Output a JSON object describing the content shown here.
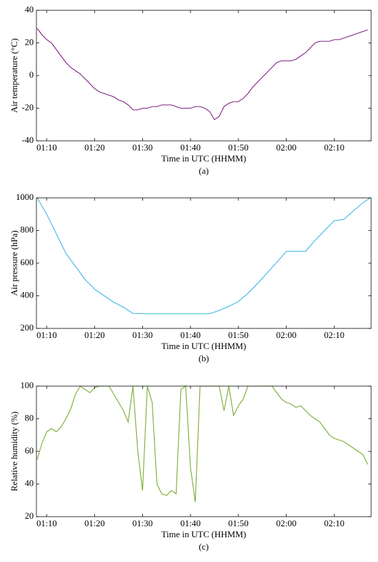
{
  "chart_data": [
    {
      "type": "line",
      "ylabel": "Air temperature (°C)",
      "xlabel": "Time in UTC (HHMM)",
      "caption": "(a)",
      "xlim": [
        67.85,
        137.7
      ],
      "ylim": [
        -40,
        40
      ],
      "yticks": [
        -40,
        -20,
        0,
        20,
        40
      ],
      "xticks": [
        {
          "value": 70,
          "label": "01:10"
        },
        {
          "value": 80,
          "label": "01:20"
        },
        {
          "value": 90,
          "label": "01:30"
        },
        {
          "value": 100,
          "label": "01:40"
        },
        {
          "value": 110,
          "label": "01:50"
        },
        {
          "value": 120,
          "label": "02:00"
        },
        {
          "value": 130,
          "label": "02:10"
        }
      ],
      "series": [
        {
          "color": "#7e1e80",
          "x": [
            68,
            69,
            70,
            71,
            72,
            73,
            74,
            75,
            76,
            77,
            78,
            79,
            80,
            81,
            82,
            83,
            84,
            85,
            86,
            87,
            88,
            89,
            90,
            91,
            92,
            93,
            94,
            95,
            96,
            97,
            98,
            99,
            100,
            101,
            102,
            103,
            104,
            105,
            106,
            107,
            108,
            109,
            110,
            111,
            112,
            113,
            114,
            115,
            116,
            117,
            118,
            119,
            120,
            121,
            122,
            123,
            124,
            125,
            126,
            127,
            128,
            129,
            130,
            131,
            132,
            133,
            134,
            135,
            136,
            137
          ],
          "values": [
            29,
            25,
            22,
            20,
            16,
            12,
            8,
            5,
            3,
            1,
            -2,
            -5,
            -8,
            -10,
            -11,
            -12,
            -13,
            -15,
            -16,
            -18,
            -21,
            -21,
            -20,
            -20,
            -19,
            -19,
            -18,
            -18,
            -18,
            -19,
            -20,
            -20,
            -20,
            -19,
            -19,
            -20,
            -22,
            -27,
            -25,
            -19,
            -17,
            -16,
            -16,
            -14,
            -11,
            -7,
            -4,
            -1,
            2,
            5,
            8,
            9,
            9,
            9,
            10,
            12,
            14,
            17,
            20,
            21,
            21,
            21,
            22,
            22,
            23,
            24,
            25,
            26,
            27,
            28
          ]
        }
      ]
    },
    {
      "type": "line",
      "ylabel": "Air pressure (hPa)",
      "xlabel": "Time in UTC (HHMM)",
      "caption": "(b)",
      "xlim": [
        67.85,
        137.7
      ],
      "ylim": [
        200,
        1000
      ],
      "yticks": [
        200,
        400,
        600,
        800,
        1000
      ],
      "xticks": [
        {
          "value": 70,
          "label": "01:10"
        },
        {
          "value": 80,
          "label": "01:20"
        },
        {
          "value": 90,
          "label": "01:30"
        },
        {
          "value": 100,
          "label": "01:40"
        },
        {
          "value": 110,
          "label": "01:50"
        },
        {
          "value": 120,
          "label": "02:00"
        },
        {
          "value": 130,
          "label": "02:10"
        }
      ],
      "series": [
        {
          "color": "#3db5e6",
          "x": [
            68,
            70,
            72,
            74,
            76,
            78,
            80,
            82,
            84,
            86,
            88,
            90,
            92,
            94,
            96,
            98,
            100,
            102,
            104,
            106,
            108,
            110,
            112,
            114,
            116,
            118,
            120,
            122,
            124,
            126,
            128,
            130,
            132,
            134,
            136,
            137.5
          ],
          "values": [
            1000,
            900,
            780,
            660,
            580,
            500,
            440,
            400,
            360,
            330,
            292,
            290,
            290,
            290,
            290,
            290,
            290,
            290,
            290,
            310,
            335,
            365,
            415,
            475,
            540,
            605,
            672,
            672,
            672,
            740,
            800,
            860,
            868,
            920,
            970,
            1000
          ]
        }
      ]
    },
    {
      "type": "line",
      "ylabel": "Relative humidity (%)",
      "xlabel": "Time in UTC (HHMM)",
      "caption": "(c)",
      "xlim": [
        67.85,
        137.7
      ],
      "ylim": [
        20,
        100
      ],
      "yticks": [
        20,
        40,
        60,
        80,
        100
      ],
      "xticks": [
        {
          "value": 70,
          "label": "01:10"
        },
        {
          "value": 80,
          "label": "01:20"
        },
        {
          "value": 90,
          "label": "01:30"
        },
        {
          "value": 100,
          "label": "01:40"
        },
        {
          "value": 110,
          "label": "01:50"
        },
        {
          "value": 120,
          "label": "02:00"
        },
        {
          "value": 130,
          "label": "02:10"
        }
      ],
      "series": [
        {
          "color": "#76ab2f",
          "x": [
            68,
            69,
            70,
            71,
            72,
            73,
            74,
            75,
            76,
            77,
            78,
            79,
            80,
            81,
            82,
            83,
            84,
            85,
            86,
            87,
            88,
            89,
            90,
            91,
            92,
            93,
            94,
            95,
            96,
            97,
            98,
            99,
            100,
            101,
            102,
            103,
            104,
            105,
            106,
            107,
            108,
            109,
            110,
            111,
            112,
            113,
            114,
            115,
            116,
            117,
            118,
            119,
            120,
            121,
            122,
            123,
            124,
            125,
            126,
            127,
            128,
            129,
            130,
            131,
            132,
            133,
            134,
            135,
            136,
            137
          ],
          "values": [
            55,
            65,
            72,
            74,
            72,
            75,
            80,
            86,
            95,
            100,
            98,
            96,
            99,
            100,
            100,
            100,
            95,
            90,
            85,
            78,
            100,
            60,
            36,
            100,
            90,
            40,
            34,
            33,
            36,
            34,
            98,
            100,
            50,
            29,
            100,
            100,
            100,
            100,
            100,
            85,
            100,
            82,
            88,
            92,
            100,
            100,
            100,
            100,
            100,
            100,
            96,
            92,
            90,
            89,
            87,
            88,
            85,
            82,
            80,
            78,
            74,
            70,
            68,
            67,
            66,
            64,
            62,
            60,
            58,
            52
          ]
        }
      ]
    }
  ]
}
